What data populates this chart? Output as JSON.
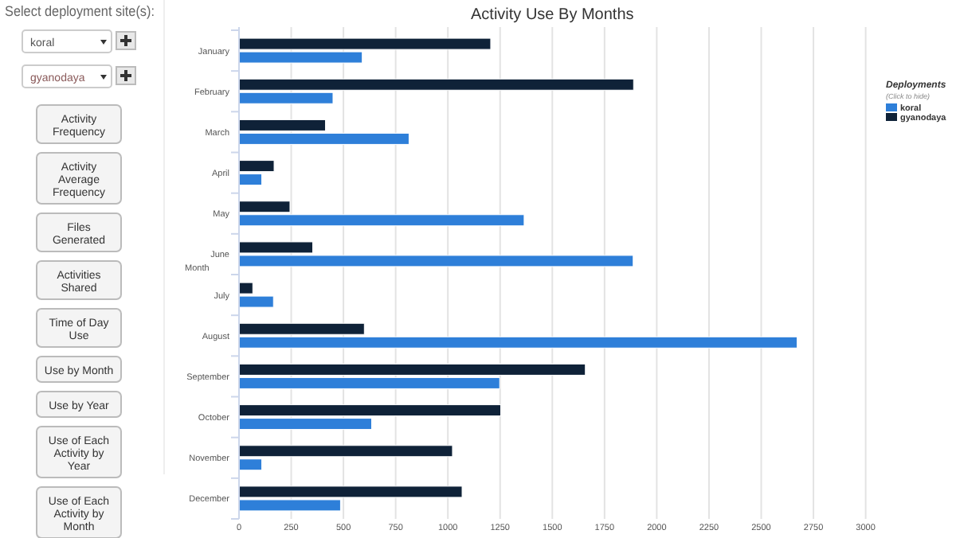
{
  "chart_data": {
    "type": "bar",
    "orientation": "horizontal",
    "title": "Activity Use By Months",
    "ylabel": "Month",
    "legend_title": "Deployments",
    "legend": "right",
    "categories": [
      "January",
      "February",
      "March",
      "April",
      "May",
      "June",
      "July",
      "August",
      "September",
      "October",
      "November",
      "December"
    ],
    "series": [
      {
        "name": "koral",
        "color": "#2e7fd9",
        "values": [
          590,
          450,
          814,
          109,
          1365,
          1887,
          165,
          2672,
          1248,
          635,
          109,
          486
        ]
      },
      {
        "name": "gyanodaya",
        "color": "#0f2238",
        "values": [
          1205,
          1889,
          414,
          168,
          244,
          353,
          66,
          600,
          1658,
          1253,
          1022,
          1068
        ]
      }
    ],
    "xlim": [
      0,
      3000
    ],
    "xticks": [
      0,
      250,
      500,
      750,
      1000,
      1250,
      1500,
      1750,
      2000,
      2250,
      2500,
      2750,
      3000
    ],
    "grid": "x",
    "annotations": [
      "(Click to hide)",
      "Select deployment site(s):",
      "koral",
      "gyanodaya",
      "Activity Frequency",
      "Activity Average Frequency",
      "Files Generated",
      "Activities Shared",
      "Time of Day Use",
      "Use by Month",
      "Use by Year",
      "Use of Each Activity by Year",
      "Use of Each Activity by Month"
    ]
  }
}
